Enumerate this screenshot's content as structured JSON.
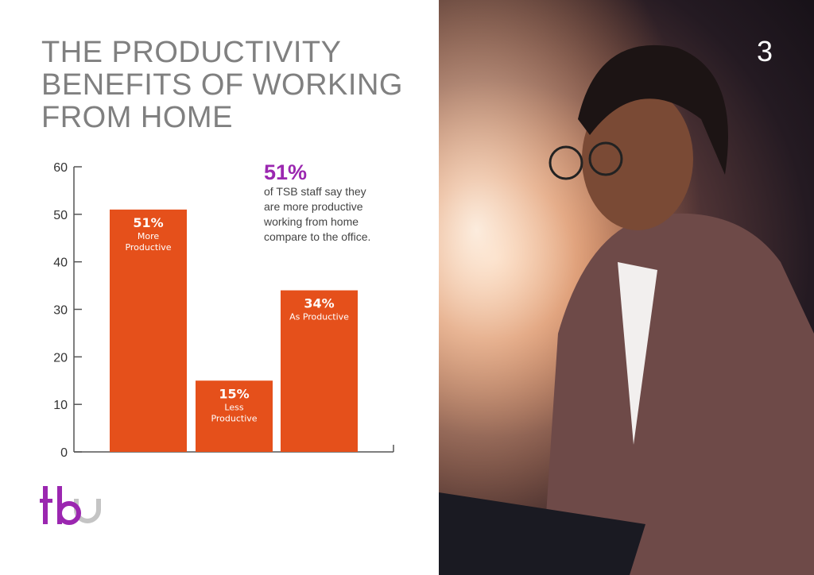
{
  "page": {
    "title_lines": [
      "THE PRODUCTIVITY",
      "BENEFITS OF WORKING",
      "FROM HOME"
    ],
    "page_number": "3"
  },
  "callout": {
    "value": "51%",
    "text_lines": [
      "of TSB staff say they",
      "are more productive",
      "working from home",
      "compare to the office."
    ]
  },
  "logo": {
    "text": "tbu",
    "colors": {
      "primary": "#9b27b0",
      "secondary": "#c4c4c4"
    }
  },
  "chart_data": {
    "type": "bar",
    "categories": [
      "More Productive",
      "Less Productive",
      "As Productive"
    ],
    "values": [
      51,
      15,
      34
    ],
    "data_labels": [
      {
        "value": "51%",
        "lines": [
          "More",
          "Productive"
        ]
      },
      {
        "value": "15%",
        "lines": [
          "Less",
          "Productive"
        ]
      },
      {
        "value": "34%",
        "lines": [
          "As Productive"
        ]
      }
    ],
    "ylim": [
      0,
      60
    ],
    "yticks": [
      0,
      10,
      20,
      30,
      40,
      50,
      60
    ],
    "grid": false,
    "bar_color": "#e5501b",
    "title": "",
    "xlabel": "",
    "ylabel": ""
  }
}
